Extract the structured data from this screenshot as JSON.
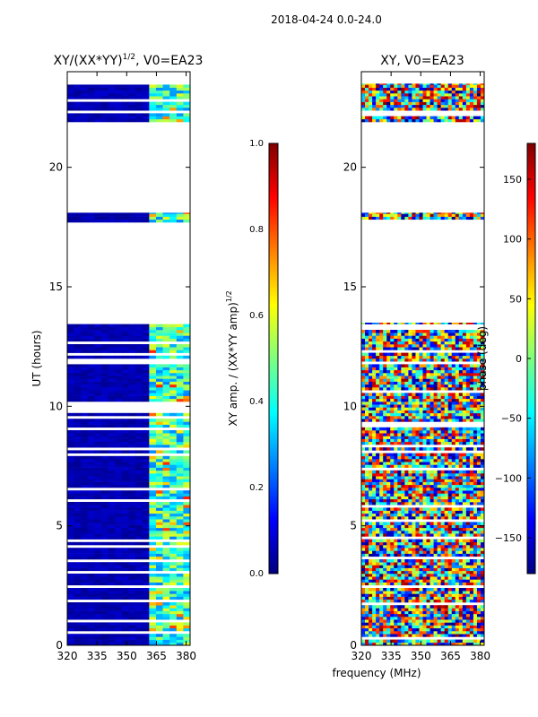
{
  "figure": {
    "suptitle": "2018-04-24 0.0-24.0",
    "xlabel_shared": "frequency (MHz)"
  },
  "colormap": {
    "stops": [
      "#00007f",
      "#0000ff",
      "#007fff",
      "#00ffff",
      "#7fff7f",
      "#ffff00",
      "#ff7f00",
      "#ff0000",
      "#7f0000"
    ]
  },
  "chart_data": [
    {
      "type": "heatmap",
      "title": "XY/(XX*YY)",
      "title_sup": "1/2",
      "title_suffix": ", V0=EA23",
      "xlabel": "",
      "ylabel": "UT (hours)",
      "xlim": [
        320,
        382
      ],
      "ylim": [
        0,
        24
      ],
      "xticks": [
        320,
        335,
        350,
        365,
        380
      ],
      "yticks": [
        0,
        5,
        10,
        15,
        20
      ],
      "populated_hours": [
        [
          0,
          13.5
        ],
        [
          17.7,
          18.1
        ],
        [
          21.9,
          23.5
        ]
      ],
      "colorbar": {
        "label": "XY amp. / (XX*YY amp)",
        "label_sup": "1/2",
        "range": [
          0.0,
          1.0
        ],
        "ticks": [
          "0.0",
          "0.2",
          "0.4",
          "0.6",
          "0.8",
          "1.0"
        ]
      }
    },
    {
      "type": "heatmap",
      "title": "XY, V0=EA23",
      "xlabel": "frequency (MHz)",
      "ylabel": "",
      "xlim": [
        320,
        382
      ],
      "ylim": [
        0,
        24
      ],
      "xticks": [
        320,
        335,
        350,
        365,
        380
      ],
      "yticks": [
        0,
        5,
        10,
        15,
        20
      ],
      "populated_hours": [
        [
          0,
          13.5
        ],
        [
          17.7,
          18.1
        ],
        [
          21.9,
          23.5
        ]
      ],
      "colorbar": {
        "label": "phase (deg)",
        "range": [
          -180,
          180
        ],
        "ticks": [
          "−150",
          "−100",
          "−50",
          "0",
          "50",
          "100",
          "150"
        ],
        "tick_values": [
          -150,
          -100,
          -50,
          0,
          50,
          100,
          150
        ]
      }
    }
  ]
}
